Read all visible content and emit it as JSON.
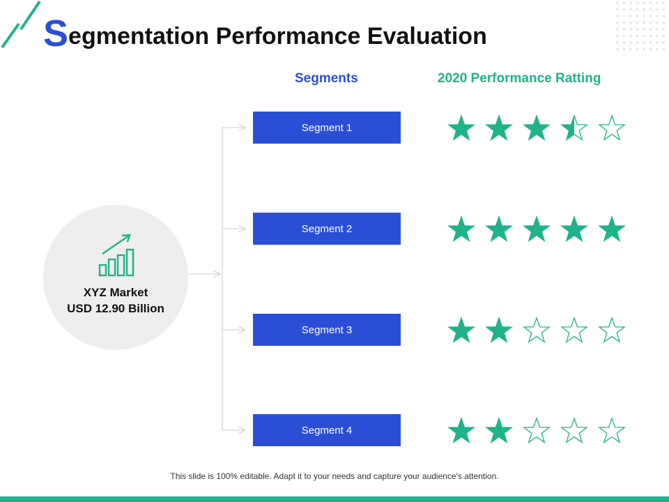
{
  "title": {
    "first_letter": "S",
    "rest": "egmentation Performance Evaluation"
  },
  "headers": {
    "segments": "Segments",
    "rating": "2020 Performance Ratting"
  },
  "market": {
    "icon": "growth-chart-icon",
    "name": "XYZ Market",
    "value": "USD 12.90 Billion"
  },
  "rating_scale_max": 5,
  "segments": [
    {
      "label": "Segment 1",
      "rating": 3.5
    },
    {
      "label": "Segment 2",
      "rating": 5
    },
    {
      "label": "Segment 3",
      "rating": 2
    },
    {
      "label": "Segment 4",
      "rating": 2
    }
  ],
  "footer": {
    "note": "This slide is 100% editable. Adapt it to your needs and capture your audience's attention."
  },
  "colors": {
    "blue": "#2a4fd6",
    "green": "#1fb38a",
    "circle_bg": "#eeeeee",
    "connector": "#d6d6d6",
    "dots": "#e3e3e3"
  }
}
